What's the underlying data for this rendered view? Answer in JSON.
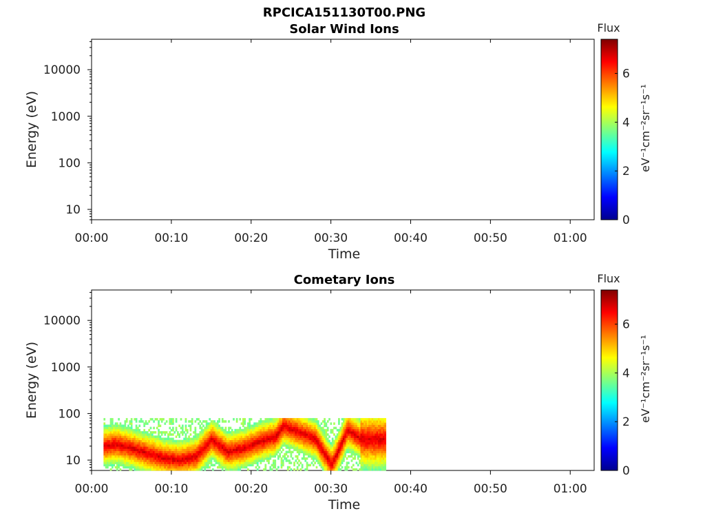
{
  "chart_data": [
    {
      "type": "heatmap",
      "figure_title": "RPCICA151130T00.PNG",
      "title": "Solar Wind Ions",
      "xlabel": "Time",
      "ylabel": "Energy (eV)",
      "x_ticks": [
        "00:00",
        "00:10",
        "00:20",
        "00:30",
        "00:40",
        "00:50",
        "01:00"
      ],
      "x_range_min": [
        0,
        63
      ],
      "y_scale": "log",
      "y_ticks": [
        "10",
        "100",
        "1000",
        "10000"
      ],
      "y_range_eV": [
        6,
        45000
      ],
      "colorbar": {
        "title": "Flux",
        "label": "eV⁻¹cm⁻²sr⁻¹s⁻¹",
        "ticks": [
          "0",
          "2",
          "4",
          "6"
        ],
        "range": [
          0,
          7.4
        ],
        "colormap": "jet"
      },
      "data": []
    },
    {
      "type": "heatmap",
      "title": "Cometary Ions",
      "xlabel": "Time",
      "ylabel": "Energy (eV)",
      "x_ticks": [
        "00:00",
        "00:10",
        "00:20",
        "00:30",
        "00:40",
        "00:50",
        "01:00"
      ],
      "x_range_min": [
        0,
        63
      ],
      "y_scale": "log",
      "y_ticks": [
        "10",
        "100",
        "1000",
        "10000"
      ],
      "y_range_eV": [
        6,
        45000
      ],
      "colorbar": {
        "title": "Flux",
        "label": "eV⁻¹cm⁻²sr⁻¹s⁻¹",
        "ticks": [
          "0",
          "2",
          "4",
          "6"
        ],
        "range": [
          0,
          7.4
        ],
        "colormap": "jet"
      },
      "data_extent_min": [
        1.5,
        36.7
      ],
      "data_energy_range_eV": [
        6,
        80
      ],
      "peak_energy_trace": {
        "time_min": [
          1.5,
          3,
          5,
          7,
          9,
          11,
          13,
          15,
          17,
          19,
          21,
          23,
          24,
          26,
          28,
          30,
          31,
          32,
          33.5,
          34.5,
          36.5
        ],
        "energy_eV": [
          20,
          22,
          18,
          14,
          11,
          10,
          12,
          28,
          15,
          18,
          25,
          32,
          55,
          40,
          28,
          8,
          18,
          45,
          30,
          28,
          28
        ]
      },
      "peak_flux": 6.8,
      "background_flux": 3.5
    }
  ]
}
